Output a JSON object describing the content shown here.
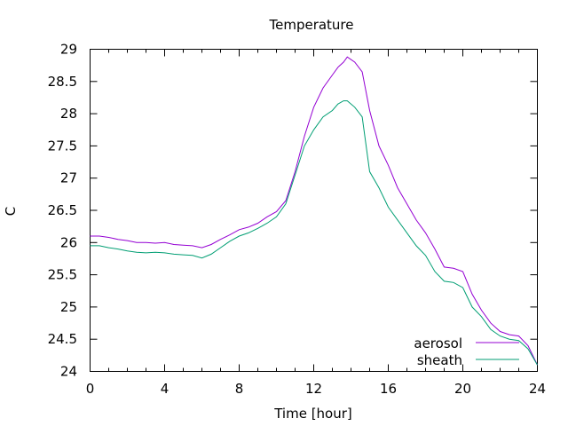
{
  "chart_data": {
    "type": "line",
    "title": "Temperature",
    "xlabel": "Time [hour]",
    "ylabel": "C",
    "xlim": [
      0,
      24
    ],
    "ylim": [
      24,
      29
    ],
    "xticks": [
      0,
      4,
      8,
      12,
      16,
      20,
      24
    ],
    "yticks": [
      24,
      24.5,
      25,
      25.5,
      26,
      26.5,
      27,
      27.5,
      28,
      28.5,
      29
    ],
    "grid": false,
    "legend_position": "bottom-right",
    "series": [
      {
        "name": "aerosol",
        "color": "#9400d3",
        "x": [
          0,
          0.5,
          1,
          1.5,
          2,
          2.5,
          3,
          3.5,
          4,
          4.5,
          5,
          5.5,
          6,
          6.5,
          7,
          7.5,
          8,
          8.5,
          9,
          9.5,
          10,
          10.5,
          11,
          11.5,
          12,
          12.5,
          13,
          13.3,
          13.6,
          13.8,
          14.2,
          14.6,
          15,
          15.5,
          16,
          16.5,
          17,
          17.5,
          18,
          18.5,
          19,
          19.5,
          20,
          20.5,
          21,
          21.5,
          22,
          22.5,
          23,
          23.5,
          24
        ],
        "y": [
          26.1,
          26.1,
          26.08,
          26.05,
          26.03,
          26.0,
          26.0,
          25.99,
          26.0,
          25.97,
          25.96,
          25.95,
          25.92,
          25.97,
          26.05,
          26.12,
          26.2,
          26.24,
          26.3,
          26.4,
          26.48,
          26.65,
          27.1,
          27.65,
          28.1,
          28.4,
          28.6,
          28.72,
          28.8,
          28.88,
          28.8,
          28.65,
          28.05,
          27.5,
          27.2,
          26.85,
          26.6,
          26.35,
          26.15,
          25.9,
          25.62,
          25.6,
          25.55,
          25.2,
          24.95,
          24.75,
          24.62,
          24.57,
          24.55,
          24.4,
          24.1
        ]
      },
      {
        "name": "sheath",
        "color": "#009e73",
        "x": [
          0,
          0.5,
          1,
          1.5,
          2,
          2.5,
          3,
          3.5,
          4,
          4.5,
          5,
          5.5,
          6,
          6.5,
          7,
          7.5,
          8,
          8.5,
          9,
          9.5,
          10,
          10.5,
          11,
          11.5,
          12,
          12.5,
          13,
          13.3,
          13.6,
          13.8,
          14.2,
          14.6,
          15,
          15.5,
          16,
          16.5,
          17,
          17.5,
          18,
          18.5,
          19,
          19.5,
          20,
          20.5,
          21,
          21.5,
          22,
          22.5,
          23,
          23.5,
          24
        ],
        "y": [
          25.95,
          25.95,
          25.92,
          25.9,
          25.87,
          25.85,
          25.84,
          25.85,
          25.84,
          25.82,
          25.81,
          25.8,
          25.76,
          25.82,
          25.92,
          26.02,
          26.1,
          26.15,
          26.22,
          26.3,
          26.4,
          26.6,
          27.05,
          27.5,
          27.75,
          27.95,
          28.05,
          28.15,
          28.2,
          28.2,
          28.1,
          27.95,
          27.1,
          26.85,
          26.55,
          26.35,
          26.15,
          25.95,
          25.8,
          25.55,
          25.4,
          25.38,
          25.3,
          25.0,
          24.85,
          24.65,
          24.55,
          24.5,
          24.48,
          24.35,
          24.1
        ]
      }
    ]
  }
}
